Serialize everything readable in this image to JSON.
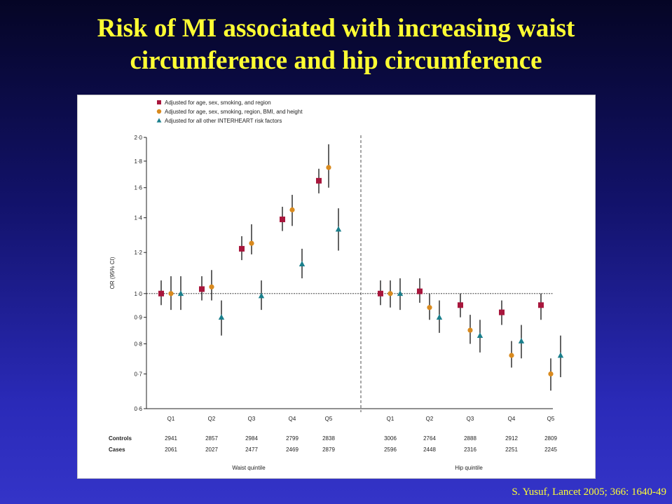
{
  "slide": {
    "title_line1": "Risk of MI associated with increasing waist",
    "title_line2": "circumference and hip circumference",
    "citation": "S. Yusuf, Lancet 2005; 366: 1640-49"
  },
  "colors": {
    "title": "#ffff33",
    "series1": "#a8163c",
    "series2": "#d98a1e",
    "series3": "#1a7f8c"
  },
  "chart_data": {
    "type": "scatter",
    "ylabel": "OR (95% CI)",
    "ylim": [
      0.6,
      2.0
    ],
    "y_scale": "log",
    "yticks": [
      {
        "value": 0.6,
        "label": "0·6"
      },
      {
        "value": 0.7,
        "label": "0·7"
      },
      {
        "value": 0.8,
        "label": "0·8"
      },
      {
        "value": 0.9,
        "label": "0·9"
      },
      {
        "value": 1.0,
        "label": "1·0"
      },
      {
        "value": 1.2,
        "label": "1·2"
      },
      {
        "value": 1.4,
        "label": "1·4"
      },
      {
        "value": 1.6,
        "label": "1·6"
      },
      {
        "value": 1.8,
        "label": "1·8"
      },
      {
        "value": 2.0,
        "label": "2·0"
      }
    ],
    "reference_line": 1.0,
    "legend": {
      "position": "top-left",
      "items": [
        {
          "name": "Adjusted for age, sex, smoking, and region",
          "marker": "square",
          "color": "#a8163c"
        },
        {
          "name": "Adjusted for age, sex, smoking, region, BMI, and height",
          "marker": "circle",
          "color": "#d98a1e"
        },
        {
          "name": "Adjusted for all other INTERHEART risk factors",
          "marker": "triangle",
          "color": "#1a7f8c"
        }
      ]
    },
    "row_labels": {
      "controls": "Controls",
      "cases": "Cases"
    },
    "groups": [
      {
        "name": "Waist quintile",
        "categories": [
          "Q1",
          "Q2",
          "Q3",
          "Q4",
          "Q5"
        ],
        "controls": [
          "2941",
          "2857",
          "2984",
          "2799",
          "2838"
        ],
        "cases": [
          "2061",
          "2027",
          "2477",
          "2469",
          "2879"
        ],
        "series": [
          {
            "values": [
              1.0,
              1.02,
              1.22,
              1.39,
              1.65
            ],
            "ci_low": [
              0.95,
              0.97,
              1.16,
              1.32,
              1.56
            ],
            "ci_high": [
              1.06,
              1.08,
              1.29,
              1.47,
              1.74
            ]
          },
          {
            "values": [
              1.0,
              1.03,
              1.25,
              1.45,
              1.75
            ],
            "ci_low": [
              0.93,
              0.97,
              1.19,
              1.35,
              1.6
            ],
            "ci_high": [
              1.08,
              1.11,
              1.36,
              1.55,
              1.94
            ]
          },
          {
            "values": [
              1.0,
              0.9,
              0.99,
              1.14,
              1.33
            ],
            "ci_low": [
              0.93,
              0.83,
              0.93,
              1.07,
              1.21
            ],
            "ci_high": [
              1.08,
              0.97,
              1.06,
              1.22,
              1.46
            ]
          }
        ]
      },
      {
        "name": "Hip quintile",
        "categories": [
          "Q1",
          "Q2",
          "Q3",
          "Q4",
          "Q5"
        ],
        "controls": [
          "3006",
          "2764",
          "2888",
          "2912",
          "2809"
        ],
        "cases": [
          "2596",
          "2448",
          "2316",
          "2251",
          "2245"
        ],
        "series": [
          {
            "values": [
              1.0,
              1.01,
              0.95,
              0.92,
              0.95
            ],
            "ci_low": [
              0.95,
              0.96,
              0.9,
              0.87,
              0.89
            ],
            "ci_high": [
              1.06,
              1.07,
              1.0,
              0.97,
              1.0
            ]
          },
          {
            "values": [
              1.0,
              0.94,
              0.85,
              0.76,
              0.7
            ],
            "ci_low": [
              0.94,
              0.89,
              0.8,
              0.72,
              0.65
            ],
            "ci_high": [
              1.06,
              1.0,
              0.91,
              0.81,
              0.75
            ]
          },
          {
            "values": [
              1.0,
              0.9,
              0.83,
              0.81,
              0.76
            ],
            "ci_low": [
              0.93,
              0.84,
              0.77,
              0.75,
              0.69
            ],
            "ci_high": [
              1.07,
              0.97,
              0.89,
              0.87,
              0.83
            ]
          }
        ]
      }
    ]
  }
}
